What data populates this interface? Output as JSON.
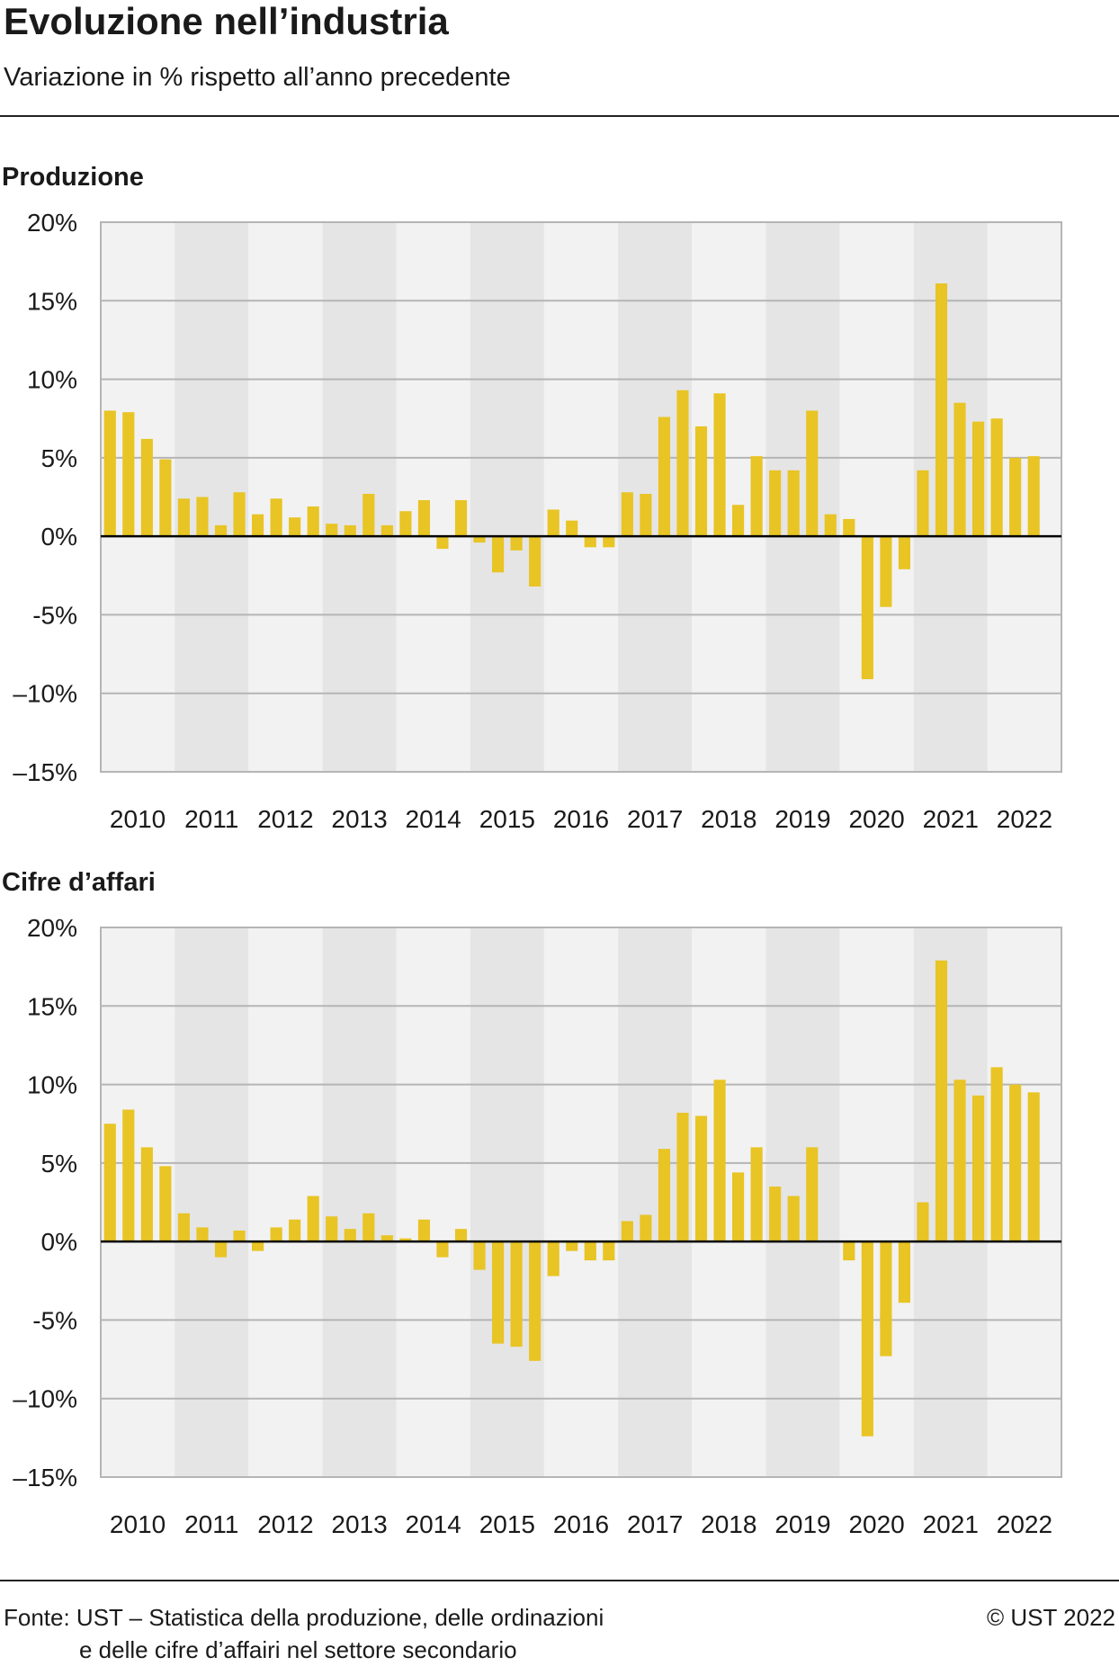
{
  "title": "Evoluzione nell’industria",
  "subtitle": "Variazione in % rispetto all’anno precedente",
  "footer": {
    "source_line1": "Fonte: UST – Statistica della produzione, delle ordinazioni",
    "source_line2": "e delle cifre d’affairi nel settore secondario",
    "copyright": "© UST 2022"
  },
  "colors": {
    "bar": "#e8c425",
    "band_dark": "#e5e5e5",
    "band_light": "#f2f2f2",
    "grid": "#b5b5b5",
    "zero_line": "#000000"
  },
  "chart_data": [
    {
      "type": "bar",
      "title": "Produzione",
      "years": [
        "2010",
        "2011",
        "2012",
        "2013",
        "2014",
        "2015",
        "2016",
        "2017",
        "2018",
        "2019",
        "2020",
        "2021",
        "2022"
      ],
      "ylim": [
        -15,
        20
      ],
      "yticks": [
        {
          "value": 20,
          "label": "20%"
        },
        {
          "value": 15,
          "label": "15%"
        },
        {
          "value": 10,
          "label": "10%"
        },
        {
          "value": 5,
          "label": "5%"
        },
        {
          "value": 0,
          "label": "0%"
        },
        {
          "value": -5,
          "label": "-5%"
        },
        {
          "value": -10,
          "label": "–10%"
        },
        {
          "value": -15,
          "label": "–15%"
        }
      ],
      "grid": true,
      "alternating_year_bands": true,
      "values": [
        8.0,
        7.9,
        6.2,
        4.9,
        2.4,
        2.5,
        0.7,
        2.8,
        1.4,
        2.4,
        1.2,
        1.9,
        0.8,
        0.7,
        2.7,
        0.7,
        1.6,
        2.3,
        -0.8,
        2.3,
        -0.4,
        -2.3,
        -0.9,
        -3.2,
        1.7,
        1.0,
        -0.7,
        -0.7,
        2.8,
        2.7,
        7.6,
        9.3,
        7.0,
        9.1,
        2.0,
        5.1,
        4.2,
        4.2,
        8.0,
        1.4,
        1.1,
        -9.1,
        -4.5,
        -2.1,
        4.2,
        16.1,
        8.5,
        7.3,
        7.5,
        5.0,
        5.1
      ]
    },
    {
      "type": "bar",
      "title": "Cifre d’affari",
      "years": [
        "2010",
        "2011",
        "2012",
        "2013",
        "2014",
        "2015",
        "2016",
        "2017",
        "2018",
        "2019",
        "2020",
        "2021",
        "2022"
      ],
      "ylim": [
        -15,
        20
      ],
      "yticks": [
        {
          "value": 20,
          "label": "20%"
        },
        {
          "value": 15,
          "label": "15%"
        },
        {
          "value": 10,
          "label": "10%"
        },
        {
          "value": 5,
          "label": "5%"
        },
        {
          "value": 0,
          "label": "0%"
        },
        {
          "value": -5,
          "label": "-5%"
        },
        {
          "value": -10,
          "label": "–10%"
        },
        {
          "value": -15,
          "label": "–15%"
        }
      ],
      "grid": true,
      "alternating_year_bands": true,
      "values": [
        7.5,
        8.4,
        6.0,
        4.8,
        1.8,
        0.9,
        -1.0,
        0.7,
        -0.6,
        0.9,
        1.4,
        2.9,
        1.6,
        0.8,
        1.8,
        0.4,
        0.2,
        1.4,
        -1.0,
        0.8,
        -1.8,
        -6.5,
        -6.7,
        -7.6,
        -2.2,
        -0.6,
        -1.2,
        -1.2,
        1.3,
        1.7,
        5.9,
        8.2,
        8.0,
        10.3,
        4.4,
        6.0,
        3.5,
        2.9,
        6.0,
        0.0,
        -1.2,
        -12.4,
        -7.3,
        -3.9,
        2.5,
        17.9,
        10.3,
        9.3,
        11.1,
        10.0,
        9.5
      ]
    }
  ]
}
